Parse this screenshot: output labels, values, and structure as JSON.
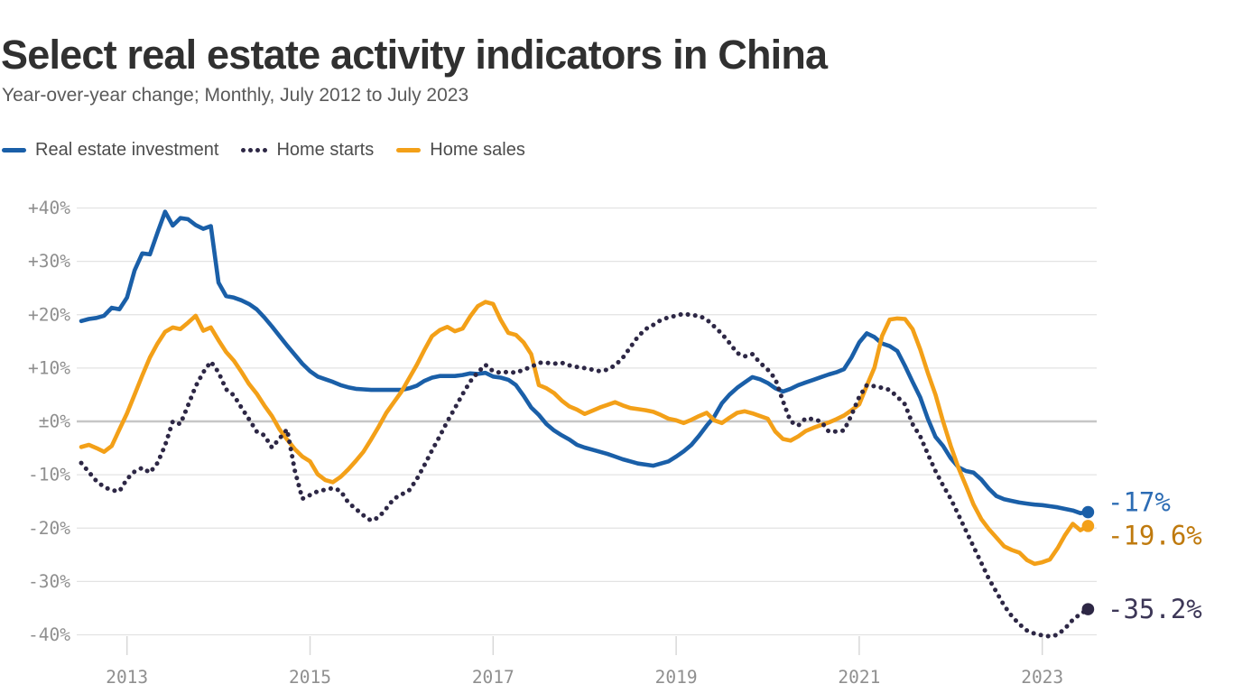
{
  "header": {
    "title": "Select real estate activity indicators in China",
    "subtitle": "Year-over-year change; Monthly, July 2012 to July 2023"
  },
  "chart_data": {
    "type": "line",
    "title": "Select real estate activity indicators in China",
    "subtitle": "Year-over-year change; Monthly, July 2012 to July 2023",
    "x_unit": "month",
    "x_start": "2012-07",
    "x_end": "2023-07",
    "points_per_series": 133,
    "ylim": [
      -40,
      40
    ],
    "grid": true,
    "legend_position": "top-left",
    "y_ticks": [
      "+40%",
      "+30%",
      "+20%",
      "+10%",
      "±0%",
      "-10%",
      "-20%",
      "-30%",
      "-40%"
    ],
    "x_ticks": [
      {
        "label": "2013",
        "month": 6
      },
      {
        "label": "2015",
        "month": 30
      },
      {
        "label": "2017",
        "month": 54
      },
      {
        "label": "2019",
        "month": 78
      },
      {
        "label": "2021",
        "month": 102
      },
      {
        "label": "2023",
        "month": 126
      }
    ],
    "colors": {
      "grid": "#e3e3e3",
      "zero_line": "#c6c6c6",
      "tick": "#d8d8d8",
      "axis_text": "#8f8f8f"
    },
    "series": [
      {
        "name": "Real estate investment",
        "style": "solid",
        "color": "#1a5fa8",
        "label_color": "#2c6cb4",
        "end_label": "-17%",
        "values": [
          18.8,
          19.2,
          19.4,
          19.8,
          21.3,
          21.0,
          23.2,
          28.3,
          31.5,
          31.3,
          35.4,
          39.3,
          36.7,
          38.1,
          37.9,
          36.8,
          36.1,
          36.6,
          26.0,
          23.5,
          23.2,
          22.7,
          22.0,
          21.0,
          19.5,
          17.8,
          16.0,
          14.2,
          12.5,
          10.8,
          9.4,
          8.4,
          7.9,
          7.4,
          6.8,
          6.4,
          6.1,
          6.0,
          5.9,
          5.9,
          5.9,
          5.9,
          5.9,
          6.2,
          6.7,
          7.6,
          8.2,
          8.5,
          8.5,
          8.5,
          8.7,
          9.0,
          8.9,
          9.1,
          8.4,
          8.2,
          7.8,
          6.8,
          4.8,
          2.6,
          1.2,
          -0.5,
          -1.7,
          -2.6,
          -3.4,
          -4.4,
          -4.9,
          -5.3,
          -5.7,
          -6.1,
          -6.6,
          -7.1,
          -7.5,
          -7.9,
          -8.1,
          -8.3,
          -7.9,
          -7.5,
          -6.6,
          -5.6,
          -4.4,
          -2.7,
          -0.8,
          0.9,
          3.4,
          5.0,
          6.3,
          7.3,
          8.3,
          7.9,
          7.2,
          6.2,
          5.6,
          6.1,
          6.8,
          7.3,
          7.8,
          8.3,
          8.8,
          9.2,
          9.8,
          12.0,
          14.8,
          16.5,
          15.8,
          14.6,
          14.1,
          13.2,
          10.4,
          7.4,
          4.5,
          0.5,
          -2.9,
          -4.6,
          -6.9,
          -8.6,
          -9.3,
          -9.6,
          -10.9,
          -12.6,
          -14.0,
          -14.6,
          -14.9,
          -15.2,
          -15.4,
          -15.6,
          -15.7,
          -15.9,
          -16.1,
          -16.4,
          -16.7,
          -17.2,
          -17.0
        ]
      },
      {
        "name": "Home starts",
        "style": "dotted",
        "color": "#2d2745",
        "label_color": "#3d3757",
        "end_label": "-35.2%",
        "values": [
          -7.8,
          -9.5,
          -11.2,
          -12.3,
          -12.9,
          -13.1,
          -10.8,
          -9.4,
          -8.7,
          -9.6,
          -7.8,
          -4.5,
          0.0,
          -0.5,
          3.0,
          6.6,
          9.2,
          11.2,
          9.2,
          6.0,
          4.9,
          2.6,
          0.4,
          -1.9,
          -2.6,
          -4.9,
          -3.2,
          -1.5,
          -9.2,
          -14.5,
          -13.8,
          -13.1,
          -12.8,
          -12.5,
          -13.0,
          -15.2,
          -16.4,
          -17.6,
          -18.6,
          -18.0,
          -16.3,
          -14.5,
          -13.7,
          -12.9,
          -10.8,
          -8.2,
          -5.4,
          -2.8,
          0.0,
          2.5,
          5.1,
          7.5,
          9.2,
          10.6,
          9.4,
          9.1,
          9.3,
          9.1,
          9.7,
          10.2,
          11.0,
          11.0,
          10.8,
          11.0,
          10.5,
          10.2,
          10.0,
          9.7,
          9.4,
          9.7,
          10.5,
          11.9,
          13.9,
          15.9,
          17.3,
          18.1,
          19.0,
          19.5,
          19.8,
          20.2,
          19.9,
          19.8,
          19.1,
          17.8,
          16.4,
          14.7,
          12.8,
          12.2,
          12.6,
          11.0,
          9.7,
          8.0,
          3.8,
          0.0,
          -0.8,
          0.6,
          0.4,
          0.0,
          -1.9,
          -1.9,
          -1.7,
          1.2,
          4.6,
          6.8,
          6.6,
          6.3,
          5.9,
          4.6,
          3.2,
          -0.5,
          -2.8,
          -6.1,
          -9.3,
          -12.0,
          -14.5,
          -17.5,
          -20.5,
          -23.5,
          -26.5,
          -29.5,
          -32.0,
          -34.5,
          -36.5,
          -38.0,
          -39.2,
          -39.8,
          -40.1,
          -40.3,
          -40.0,
          -38.8,
          -37.2,
          -36.1,
          -35.2
        ]
      },
      {
        "name": "Home sales",
        "style": "solid",
        "color": "#f3a018",
        "label_color": "#bf7a0e",
        "end_label": "-19.6%",
        "values": [
          -4.8,
          -4.4,
          -5.0,
          -5.7,
          -4.6,
          -1.5,
          1.5,
          5.0,
          8.6,
          12.0,
          14.6,
          16.8,
          17.6,
          17.3,
          18.5,
          19.8,
          17.0,
          17.6,
          15.2,
          13.0,
          11.4,
          9.3,
          7.0,
          5.2,
          3.0,
          1.0,
          -1.5,
          -3.4,
          -5.2,
          -6.6,
          -7.5,
          -9.9,
          -11.0,
          -11.4,
          -10.4,
          -9.0,
          -7.4,
          -5.7,
          -3.4,
          -1.0,
          1.6,
          3.6,
          5.6,
          8.1,
          10.6,
          13.4,
          16.0,
          17.1,
          17.7,
          16.9,
          17.4,
          19.7,
          21.6,
          22.4,
          22.0,
          19.0,
          16.6,
          16.2,
          14.8,
          12.6,
          6.8,
          6.2,
          5.3,
          3.9,
          2.8,
          2.2,
          1.4,
          2.0,
          2.6,
          3.1,
          3.6,
          3.0,
          2.5,
          2.3,
          2.1,
          1.8,
          1.2,
          0.5,
          0.2,
          -0.3,
          0.3,
          1.0,
          1.6,
          0.2,
          -0.3,
          0.7,
          1.6,
          1.9,
          1.5,
          1.0,
          0.5,
          -1.9,
          -3.3,
          -3.6,
          -2.8,
          -1.8,
          -1.2,
          -0.7,
          -0.2,
          0.4,
          1.1,
          2.1,
          3.2,
          6.7,
          10.1,
          16.0,
          19.1,
          19.3,
          19.2,
          17.3,
          13.5,
          9.1,
          5.0,
          0.0,
          -4.6,
          -8.7,
          -12.1,
          -15.6,
          -18.3,
          -20.2,
          -21.8,
          -23.4,
          -24.1,
          -24.6,
          -26.0,
          -26.7,
          -26.4,
          -25.9,
          -23.8,
          -21.3,
          -19.2,
          -20.4,
          -19.6
        ]
      }
    ]
  }
}
